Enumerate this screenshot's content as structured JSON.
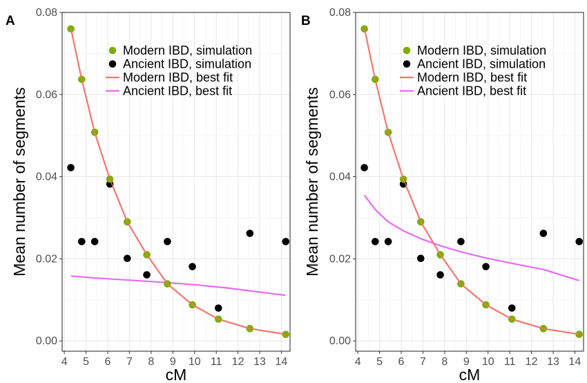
{
  "chart_data": [
    {
      "type": "scatter",
      "panel": "A",
      "xlabel": "cM",
      "ylabel": "Mean number of segments",
      "xlim": [
        3.9,
        14.4
      ],
      "ylim": [
        -0.0025,
        0.08
      ],
      "xticks": [
        4,
        5,
        6,
        7,
        8,
        9,
        10,
        11,
        12,
        13,
        14
      ],
      "yticks": [
        0.0,
        0.02,
        0.04,
        0.06,
        0.08
      ],
      "ytick_labels": [
        "0.00",
        "0.02",
        "0.04",
        "0.06",
        "0.08"
      ],
      "grid": true,
      "legend_position": "top-right",
      "series": [
        {
          "name": "Modern IBD, simulation",
          "kind": "points",
          "color": "#7cae00",
          "x": [
            4.3,
            4.8,
            5.4,
            6.1,
            6.9,
            7.8,
            8.75,
            9.9,
            11.1,
            12.55,
            14.2
          ],
          "y": [
            0.076,
            0.0637,
            0.0508,
            0.0394,
            0.029,
            0.021,
            0.0139,
            0.0088,
            0.0053,
            0.003,
            0.0016
          ]
        },
        {
          "name": "Ancient IBD, simulation",
          "kind": "points",
          "color": "#000000",
          "x": [
            4.3,
            4.8,
            5.4,
            6.1,
            6.9,
            7.8,
            8.75,
            9.9,
            11.1,
            12.55,
            14.2
          ],
          "y": [
            0.0422,
            0.0242,
            0.0242,
            0.0382,
            0.0201,
            0.0161,
            0.0242,
            0.0181,
            0.008,
            0.0262,
            0.0242
          ]
        },
        {
          "name": "Modern IBD, best fit",
          "kind": "line",
          "color": "#f8766d",
          "x": [
            4.3,
            4.8,
            5.4,
            6.1,
            6.9,
            7.8,
            8.75,
            9.9,
            11.1,
            12.55,
            14.2
          ],
          "y": [
            0.0762,
            0.0637,
            0.0508,
            0.0394,
            0.029,
            0.021,
            0.0139,
            0.0088,
            0.0053,
            0.003,
            0.0016
          ]
        },
        {
          "name": "Ancient IBD, best fit",
          "kind": "line",
          "color": "#e76bf3",
          "x": [
            4.3,
            5.5,
            7.0,
            8.75,
            10.0,
            11.5,
            13.0,
            14.2
          ],
          "y": [
            0.0158,
            0.0153,
            0.0148,
            0.0142,
            0.0137,
            0.0129,
            0.0119,
            0.0111
          ]
        }
      ]
    },
    {
      "type": "scatter",
      "panel": "B",
      "xlabel": "cM",
      "ylabel": "Mean number of segments",
      "xlim": [
        3.9,
        14.4
      ],
      "ylim": [
        -0.0025,
        0.08
      ],
      "xticks": [
        4,
        5,
        6,
        7,
        8,
        9,
        10,
        11,
        12,
        13,
        14
      ],
      "yticks": [
        0.0,
        0.02,
        0.04,
        0.06,
        0.08
      ],
      "ytick_labels": [
        "0.00",
        "0.02",
        "0.04",
        "0.06",
        "0.08"
      ],
      "grid": true,
      "legend_position": "top-right",
      "series": [
        {
          "name": "Modern IBD, simulation",
          "kind": "points",
          "color": "#7cae00",
          "x": [
            4.3,
            4.8,
            5.4,
            6.1,
            6.9,
            7.8,
            8.75,
            9.9,
            11.1,
            12.55,
            14.2
          ],
          "y": [
            0.076,
            0.0637,
            0.0508,
            0.0394,
            0.029,
            0.021,
            0.0139,
            0.0088,
            0.0053,
            0.003,
            0.0016
          ]
        },
        {
          "name": "Ancient IBD, simulation",
          "kind": "points",
          "color": "#000000",
          "x": [
            4.3,
            4.8,
            5.4,
            6.1,
            6.9,
            7.8,
            8.75,
            9.9,
            11.1,
            12.55,
            14.2
          ],
          "y": [
            0.0422,
            0.0242,
            0.0242,
            0.0382,
            0.0201,
            0.0161,
            0.0242,
            0.0181,
            0.008,
            0.0262,
            0.0242
          ]
        },
        {
          "name": "Modern IBD, best fit",
          "kind": "line",
          "color": "#f8766d",
          "x": [
            4.3,
            4.8,
            5.4,
            6.1,
            6.9,
            7.8,
            8.75,
            9.9,
            11.1,
            12.55,
            14.2
          ],
          "y": [
            0.0762,
            0.0637,
            0.0508,
            0.0394,
            0.029,
            0.021,
            0.0139,
            0.0088,
            0.0053,
            0.003,
            0.0016
          ]
        },
        {
          "name": "Ancient IBD, best fit",
          "kind": "line",
          "color": "#e76bf3",
          "x": [
            4.3,
            4.8,
            5.4,
            6.1,
            6.9,
            7.8,
            8.75,
            9.9,
            11.1,
            12.55,
            14.2
          ],
          "y": [
            0.0355,
            0.032,
            0.029,
            0.0268,
            0.0249,
            0.0232,
            0.0217,
            0.0202,
            0.0189,
            0.0174,
            0.0147
          ]
        }
      ]
    }
  ]
}
